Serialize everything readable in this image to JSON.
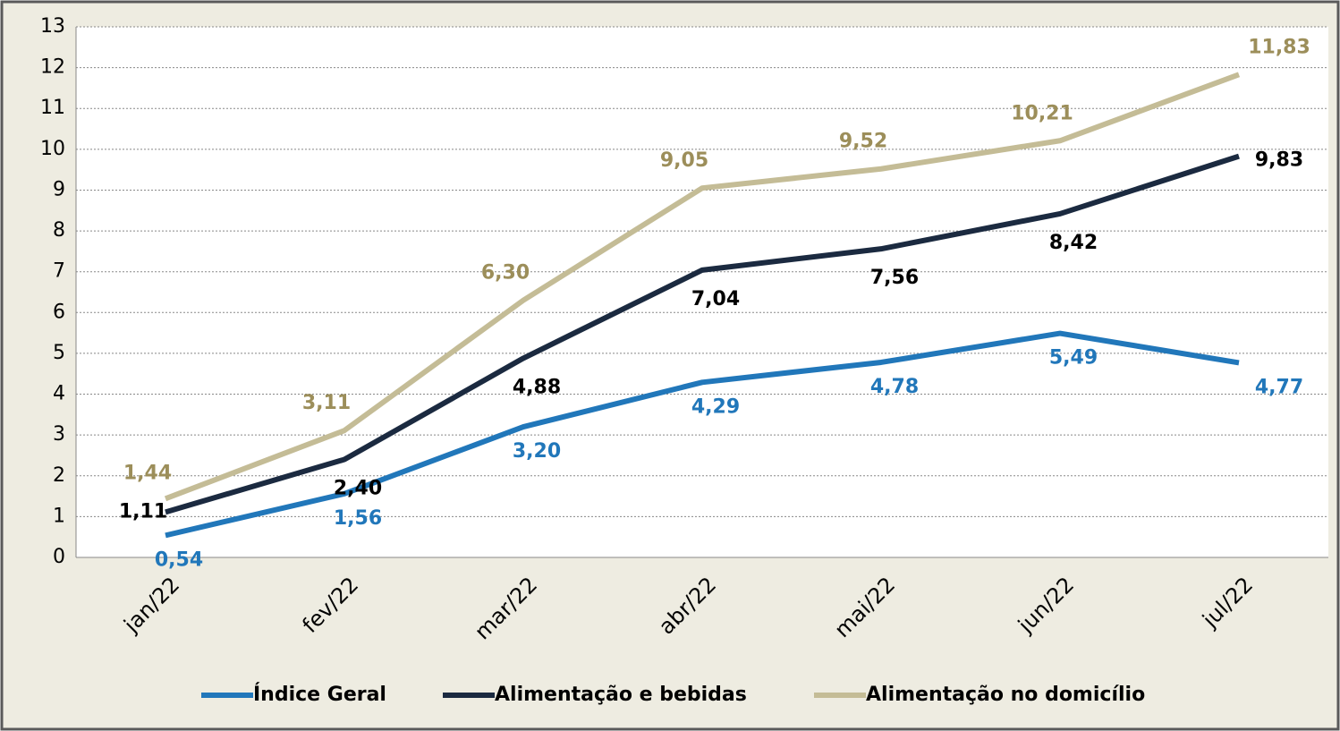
{
  "chart_data": {
    "type": "line",
    "categories": [
      "jan/22",
      "fev/22",
      "mar/22",
      "abr/22",
      "mai/22",
      "jun/22",
      "jul/22"
    ],
    "series": [
      {
        "name": "Índice Geral",
        "color": "#2177BA",
        "label_color": "#2177BA",
        "values": [
          0.54,
          1.56,
          3.2,
          4.29,
          4.78,
          5.49,
          4.77
        ],
        "value_labels": [
          "0,54",
          "1,56",
          "3,20",
          "4,29",
          "4,78",
          "5,49",
          "4,77"
        ]
      },
      {
        "name": "Alimentação e bebidas",
        "color": "#1B2A40",
        "label_color": "#000000",
        "values": [
          1.11,
          2.4,
          4.88,
          7.04,
          7.56,
          8.42,
          9.83
        ],
        "value_labels": [
          "1,11",
          "2,40",
          "4,88",
          "7,04",
          "7,56",
          "8,42",
          "9,83"
        ]
      },
      {
        "name": "Alimentação no domicílio",
        "color": "#C4BC96",
        "label_color": "#9C8E5A",
        "values": [
          1.44,
          3.11,
          6.3,
          9.05,
          9.52,
          10.21,
          11.83
        ],
        "value_labels": [
          "1,44",
          "3,11",
          "6,30",
          "9,05",
          "9,52",
          "10,21",
          "11,83"
        ]
      }
    ],
    "ylim": [
      0,
      13
    ],
    "yticks": [
      0,
      1,
      2,
      3,
      4,
      5,
      6,
      7,
      8,
      9,
      10,
      11,
      12,
      13
    ],
    "grid": true,
    "legend": "bottom"
  }
}
